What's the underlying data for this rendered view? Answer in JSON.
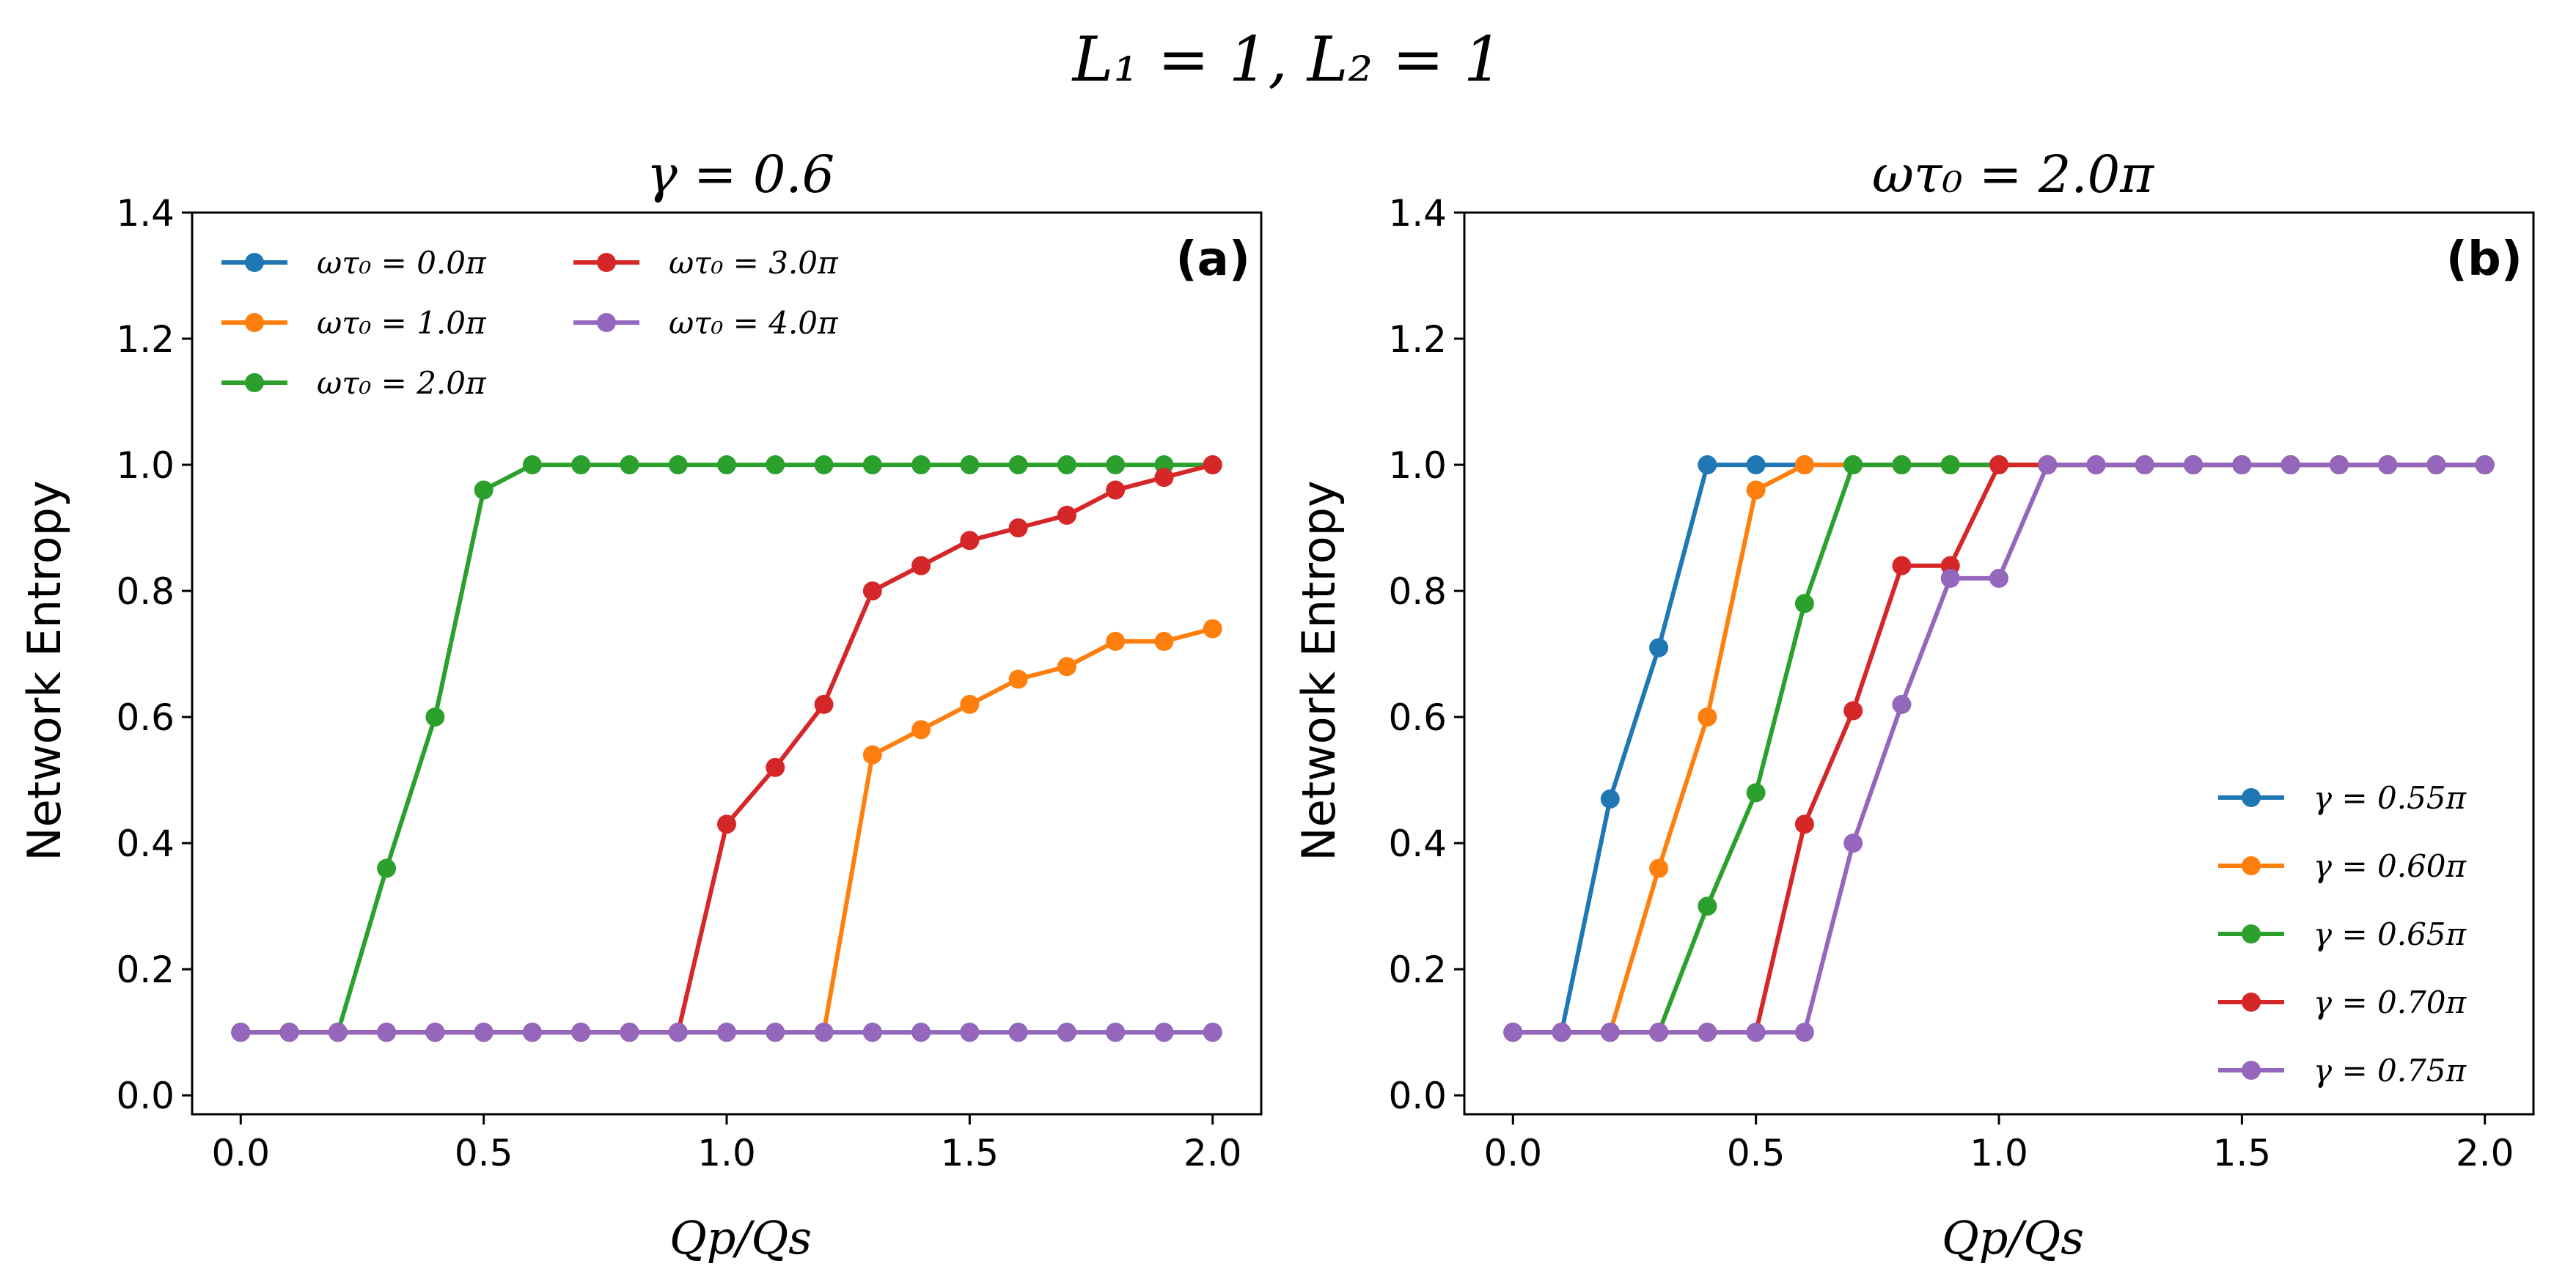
{
  "suptitle": "L₁ = 1, L₂ = 1",
  "chart_data": [
    {
      "type": "line",
      "panel_label": "(a)",
      "title": "γ = 0.6",
      "xlabel": "Qp/Qs",
      "ylabel": "Network Entropy",
      "xlim": [
        -0.1,
        2.1
      ],
      "ylim": [
        -0.03,
        1.4
      ],
      "xticks": [
        "0.0",
        "0.5",
        "1.0",
        "1.5",
        "2.0"
      ],
      "xtick_values": [
        0.0,
        0.5,
        1.0,
        1.5,
        2.0
      ],
      "yticks": [
        "0.0",
        "0.2",
        "0.4",
        "0.6",
        "0.8",
        "1.0",
        "1.2",
        "1.4"
      ],
      "ytick_values": [
        0.0,
        0.2,
        0.4,
        0.6,
        0.8,
        1.0,
        1.2,
        1.4
      ],
      "legend_position": "top-left",
      "legend_columns": 2,
      "x": [
        0.0,
        0.1,
        0.2,
        0.3,
        0.4,
        0.5,
        0.6,
        0.7,
        0.8,
        0.9,
        1.0,
        1.1,
        1.2,
        1.3,
        1.4,
        1.5,
        1.6,
        1.7,
        1.8,
        1.9,
        2.0
      ],
      "series": [
        {
          "name": "ωτ₀ = 0.0π",
          "color": "#1f77b4",
          "values": [
            0.1,
            0.1,
            0.1,
            0.1,
            0.1,
            0.1,
            0.1,
            0.1,
            0.1,
            0.1,
            0.1,
            0.1,
            0.1,
            0.1,
            0.1,
            0.1,
            0.1,
            0.1,
            0.1,
            0.1,
            0.1
          ]
        },
        {
          "name": "ωτ₀ = 1.0π",
          "color": "#ff7f0e",
          "values": [
            0.1,
            0.1,
            0.1,
            0.1,
            0.1,
            0.1,
            0.1,
            0.1,
            0.1,
            0.1,
            0.1,
            0.1,
            0.1,
            0.54,
            0.58,
            0.62,
            0.66,
            0.68,
            0.72,
            0.72,
            0.74
          ]
        },
        {
          "name": "ωτ₀ = 2.0π",
          "color": "#2ca02c",
          "values": [
            0.1,
            0.1,
            0.1,
            0.36,
            0.6,
            0.96,
            1.0,
            1.0,
            1.0,
            1.0,
            1.0,
            1.0,
            1.0,
            1.0,
            1.0,
            1.0,
            1.0,
            1.0,
            1.0,
            1.0,
            1.0
          ]
        },
        {
          "name": "ωτ₀ = 3.0π",
          "color": "#d62728",
          "values": [
            0.1,
            0.1,
            0.1,
            0.1,
            0.1,
            0.1,
            0.1,
            0.1,
            0.1,
            0.1,
            0.43,
            0.52,
            0.62,
            0.8,
            0.84,
            0.88,
            0.9,
            0.92,
            0.96,
            0.98,
            1.0
          ]
        },
        {
          "name": "ωτ₀ = 4.0π",
          "color": "#9467bd",
          "values": [
            0.1,
            0.1,
            0.1,
            0.1,
            0.1,
            0.1,
            0.1,
            0.1,
            0.1,
            0.1,
            0.1,
            0.1,
            0.1,
            0.1,
            0.1,
            0.1,
            0.1,
            0.1,
            0.1,
            0.1,
            0.1
          ]
        }
      ]
    },
    {
      "type": "line",
      "panel_label": "(b)",
      "title": "ωτ₀ = 2.0π",
      "xlabel": "Qp/Qs",
      "ylabel": "Network Entropy",
      "xlim": [
        -0.1,
        2.1
      ],
      "ylim": [
        -0.03,
        1.4
      ],
      "xticks": [
        "0.0",
        "0.5",
        "1.0",
        "1.5",
        "2.0"
      ],
      "xtick_values": [
        0.0,
        0.5,
        1.0,
        1.5,
        2.0
      ],
      "yticks": [
        "0.0",
        "0.2",
        "0.4",
        "0.6",
        "0.8",
        "1.0",
        "1.2",
        "1.4"
      ],
      "ytick_values": [
        0.0,
        0.2,
        0.4,
        0.6,
        0.8,
        1.0,
        1.2,
        1.4
      ],
      "legend_position": "bottom-right",
      "legend_columns": 1,
      "x": [
        0.0,
        0.1,
        0.2,
        0.3,
        0.4,
        0.5,
        0.6,
        0.7,
        0.8,
        0.9,
        1.0,
        1.1,
        1.2,
        1.3,
        1.4,
        1.5,
        1.6,
        1.7,
        1.8,
        1.9,
        2.0
      ],
      "series": [
        {
          "name": "γ = 0.55π",
          "color": "#1f77b4",
          "values": [
            0.1,
            0.1,
            0.47,
            0.71,
            1.0,
            1.0,
            1.0,
            1.0,
            1.0,
            1.0,
            1.0,
            1.0,
            1.0,
            1.0,
            1.0,
            1.0,
            1.0,
            1.0,
            1.0,
            1.0,
            1.0
          ]
        },
        {
          "name": "γ = 0.60π",
          "color": "#ff7f0e",
          "values": [
            0.1,
            0.1,
            0.1,
            0.36,
            0.6,
            0.96,
            1.0,
            1.0,
            1.0,
            1.0,
            1.0,
            1.0,
            1.0,
            1.0,
            1.0,
            1.0,
            1.0,
            1.0,
            1.0,
            1.0,
            1.0
          ]
        },
        {
          "name": "γ = 0.65π",
          "color": "#2ca02c",
          "values": [
            0.1,
            0.1,
            0.1,
            0.1,
            0.3,
            0.48,
            0.78,
            1.0,
            1.0,
            1.0,
            1.0,
            1.0,
            1.0,
            1.0,
            1.0,
            1.0,
            1.0,
            1.0,
            1.0,
            1.0,
            1.0
          ]
        },
        {
          "name": "γ = 0.70π",
          "color": "#d62728",
          "values": [
            0.1,
            0.1,
            0.1,
            0.1,
            0.1,
            0.1,
            0.43,
            0.61,
            0.84,
            0.84,
            1.0,
            1.0,
            1.0,
            1.0,
            1.0,
            1.0,
            1.0,
            1.0,
            1.0,
            1.0,
            1.0
          ]
        },
        {
          "name": "γ = 0.75π",
          "color": "#9467bd",
          "values": [
            0.1,
            0.1,
            0.1,
            0.1,
            0.1,
            0.1,
            0.1,
            0.4,
            0.62,
            0.82,
            0.82,
            1.0,
            1.0,
            1.0,
            1.0,
            1.0,
            1.0,
            1.0,
            1.0,
            1.0,
            1.0
          ]
        }
      ]
    }
  ]
}
